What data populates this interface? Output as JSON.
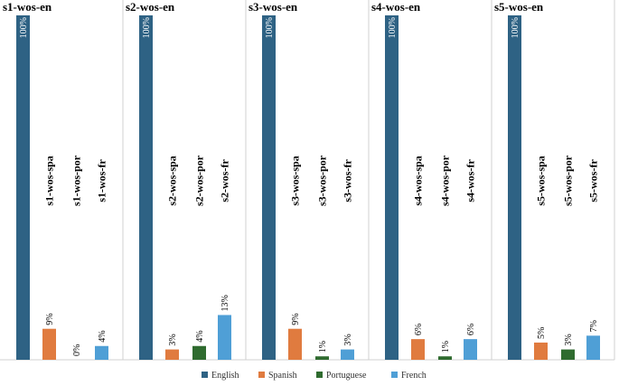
{
  "chart_data": {
    "type": "bar",
    "ylim": [
      0,
      100
    ],
    "series_names": [
      "English",
      "Spanish",
      "Portuguese",
      "French"
    ],
    "colors": {
      "English": "#2e6284",
      "Spanish": "#e07b3f",
      "Portuguese": "#2f6b2f",
      "French": "#4f9fd6"
    },
    "panels": [
      {
        "title": "s1-wos-en",
        "bars": [
          {
            "series": "English",
            "value": 100,
            "label": "100%",
            "name": ""
          },
          {
            "series": "Spanish",
            "value": 9,
            "label": "9%",
            "name": "s1-wos-spa"
          },
          {
            "series": "Portuguese",
            "value": 0,
            "label": "0%",
            "name": "s1-wos-por"
          },
          {
            "series": "French",
            "value": 4,
            "label": "4%",
            "name": "s1-wos-fr"
          }
        ]
      },
      {
        "title": "s2-wos-en",
        "bars": [
          {
            "series": "English",
            "value": 100,
            "label": "100%",
            "name": ""
          },
          {
            "series": "Spanish",
            "value": 3,
            "label": "3%",
            "name": "s2-wos-spa"
          },
          {
            "series": "Portuguese",
            "value": 4,
            "label": "4%",
            "name": "s2-wos-por"
          },
          {
            "series": "French",
            "value": 13,
            "label": "13%",
            "name": "s2-wos-fr"
          }
        ]
      },
      {
        "title": "s3-wos-en",
        "bars": [
          {
            "series": "English",
            "value": 100,
            "label": "100%",
            "name": ""
          },
          {
            "series": "Spanish",
            "value": 9,
            "label": "9%",
            "name": "s3-wos-spa"
          },
          {
            "series": "Portuguese",
            "value": 1,
            "label": "1%",
            "name": "s3-wos-por"
          },
          {
            "series": "French",
            "value": 3,
            "label": "3%",
            "name": "s3-wos-fr"
          }
        ]
      },
      {
        "title": "s4-wos-en",
        "bars": [
          {
            "series": "English",
            "value": 100,
            "label": "100%",
            "name": ""
          },
          {
            "series": "Spanish",
            "value": 6,
            "label": "6%",
            "name": "s4-wos-spa"
          },
          {
            "series": "Portuguese",
            "value": 1,
            "label": "1%",
            "name": "s4-wos-por"
          },
          {
            "series": "French",
            "value": 6,
            "label": "6%",
            "name": "s4-wos-fr"
          }
        ]
      },
      {
        "title": "s5-wos-en",
        "bars": [
          {
            "series": "English",
            "value": 100,
            "label": "100%",
            "name": ""
          },
          {
            "series": "Spanish",
            "value": 5,
            "label": "5%",
            "name": "s5-wos-spa"
          },
          {
            "series": "Portuguese",
            "value": 3,
            "label": "3%",
            "name": "s5-wos-por"
          },
          {
            "series": "French",
            "value": 7,
            "label": "7%",
            "name": "s5-wos-fr"
          }
        ]
      }
    ],
    "legend": [
      {
        "label": "English",
        "color": "#2e6284"
      },
      {
        "label": "Spanish",
        "color": "#e07b3f"
      },
      {
        "label": "Portuguese",
        "color": "#2f6b2f"
      },
      {
        "label": "French",
        "color": "#4f9fd6"
      }
    ],
    "legend_position": "bottom",
    "grid": false
  }
}
